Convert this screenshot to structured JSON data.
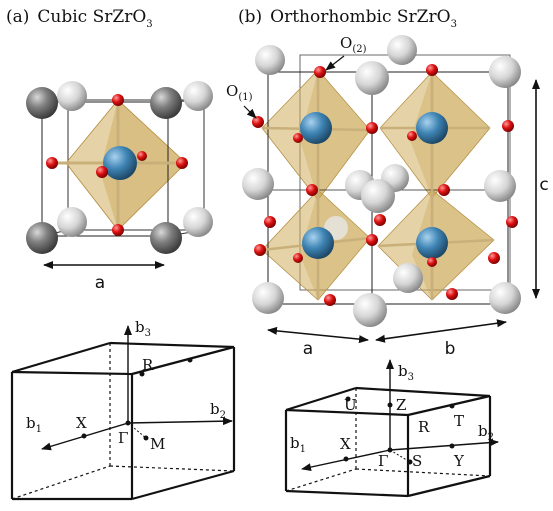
{
  "panels": [
    {
      "tag": "(a)",
      "title_main": "Cubic SrZrO",
      "title_sub": "3"
    },
    {
      "tag": "(b)",
      "title_main": "Orthorhombic SrZrO",
      "title_sub": "3"
    }
  ],
  "oxygen_labels": [
    {
      "main": "O",
      "sub": "(2)"
    },
    {
      "main": "O",
      "sub": "(1)"
    }
  ],
  "lattice_labels": {
    "a_cubic": "a",
    "a_ortho": "a",
    "b_ortho": "b",
    "c_ortho": "c"
  },
  "bz_cubic": {
    "axes": {
      "b1": "b",
      "b1_sub": "1",
      "b2": "b",
      "b2_sub": "2",
      "b3": "b",
      "b3_sub": "3"
    },
    "points": [
      "R",
      "X",
      "Γ",
      "M"
    ]
  },
  "bz_ortho": {
    "axes": {
      "b1": "b",
      "b1_sub": "1",
      "b2": "b",
      "b2_sub": "2",
      "b3": "b",
      "b3_sub": "3"
    },
    "points": [
      "U",
      "Z",
      "R",
      "T",
      "X",
      "Γ",
      "S",
      "Y"
    ]
  },
  "colors": {
    "sr_dark": "#6e6e6e",
    "sr_light": "#d9d9d9",
    "zr": "#3f85b5",
    "oxygen": "#dd1111",
    "octahedron": "#cfae5e"
  }
}
